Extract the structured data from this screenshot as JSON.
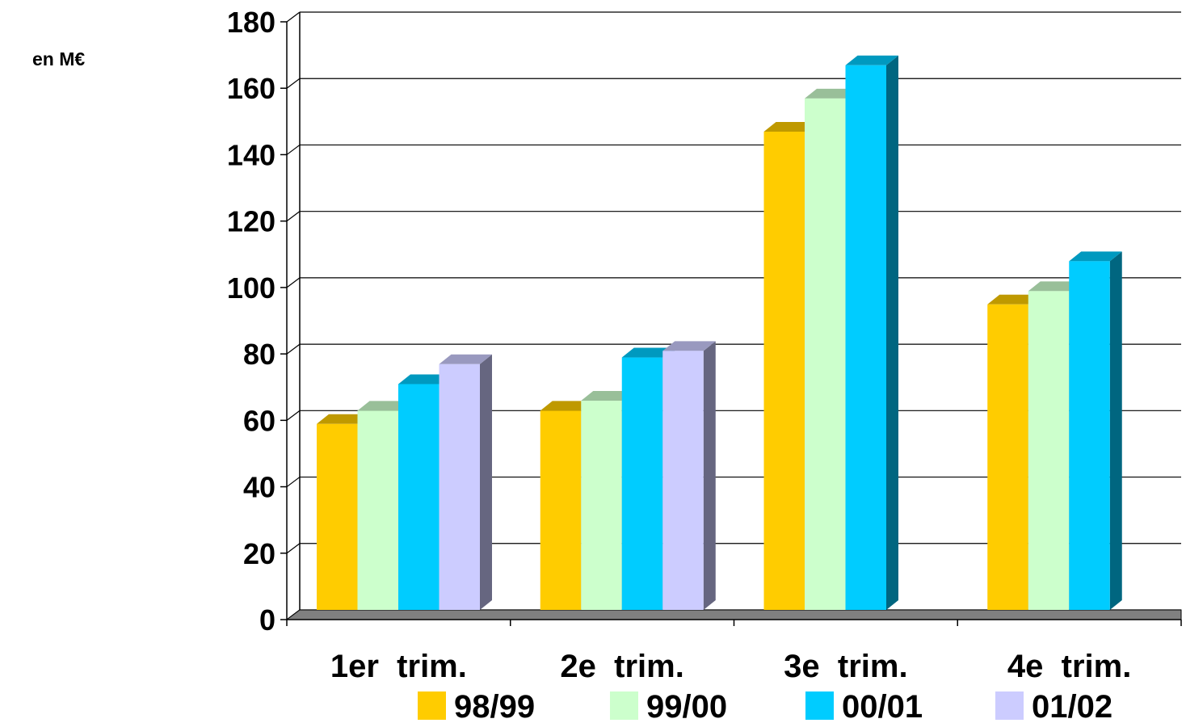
{
  "chart_data": {
    "type": "bar",
    "title": "",
    "xlabel": "",
    "ylabel": "en M€",
    "ylim": [
      0,
      180
    ],
    "yticks": [
      0,
      20,
      40,
      60,
      80,
      100,
      120,
      140,
      160,
      180
    ],
    "categories": [
      "1er  trim.",
      "2e  trim.",
      "3e  trim.",
      "4e  trim."
    ],
    "grid": true,
    "legend": "bottom",
    "series": [
      {
        "name": "98/99",
        "color": "#FFCC00",
        "values": [
          56,
          60,
          144,
          92
        ]
      },
      {
        "name": "99/00",
        "color": "#CCFFCC",
        "values": [
          60,
          63,
          154,
          96
        ]
      },
      {
        "name": "00/01",
        "color": "#00CCFF",
        "values": [
          68,
          76,
          164,
          105
        ]
      },
      {
        "name": "01/02",
        "color": "#CCCCFF",
        "values": [
          74,
          78,
          null,
          null
        ]
      }
    ]
  }
}
